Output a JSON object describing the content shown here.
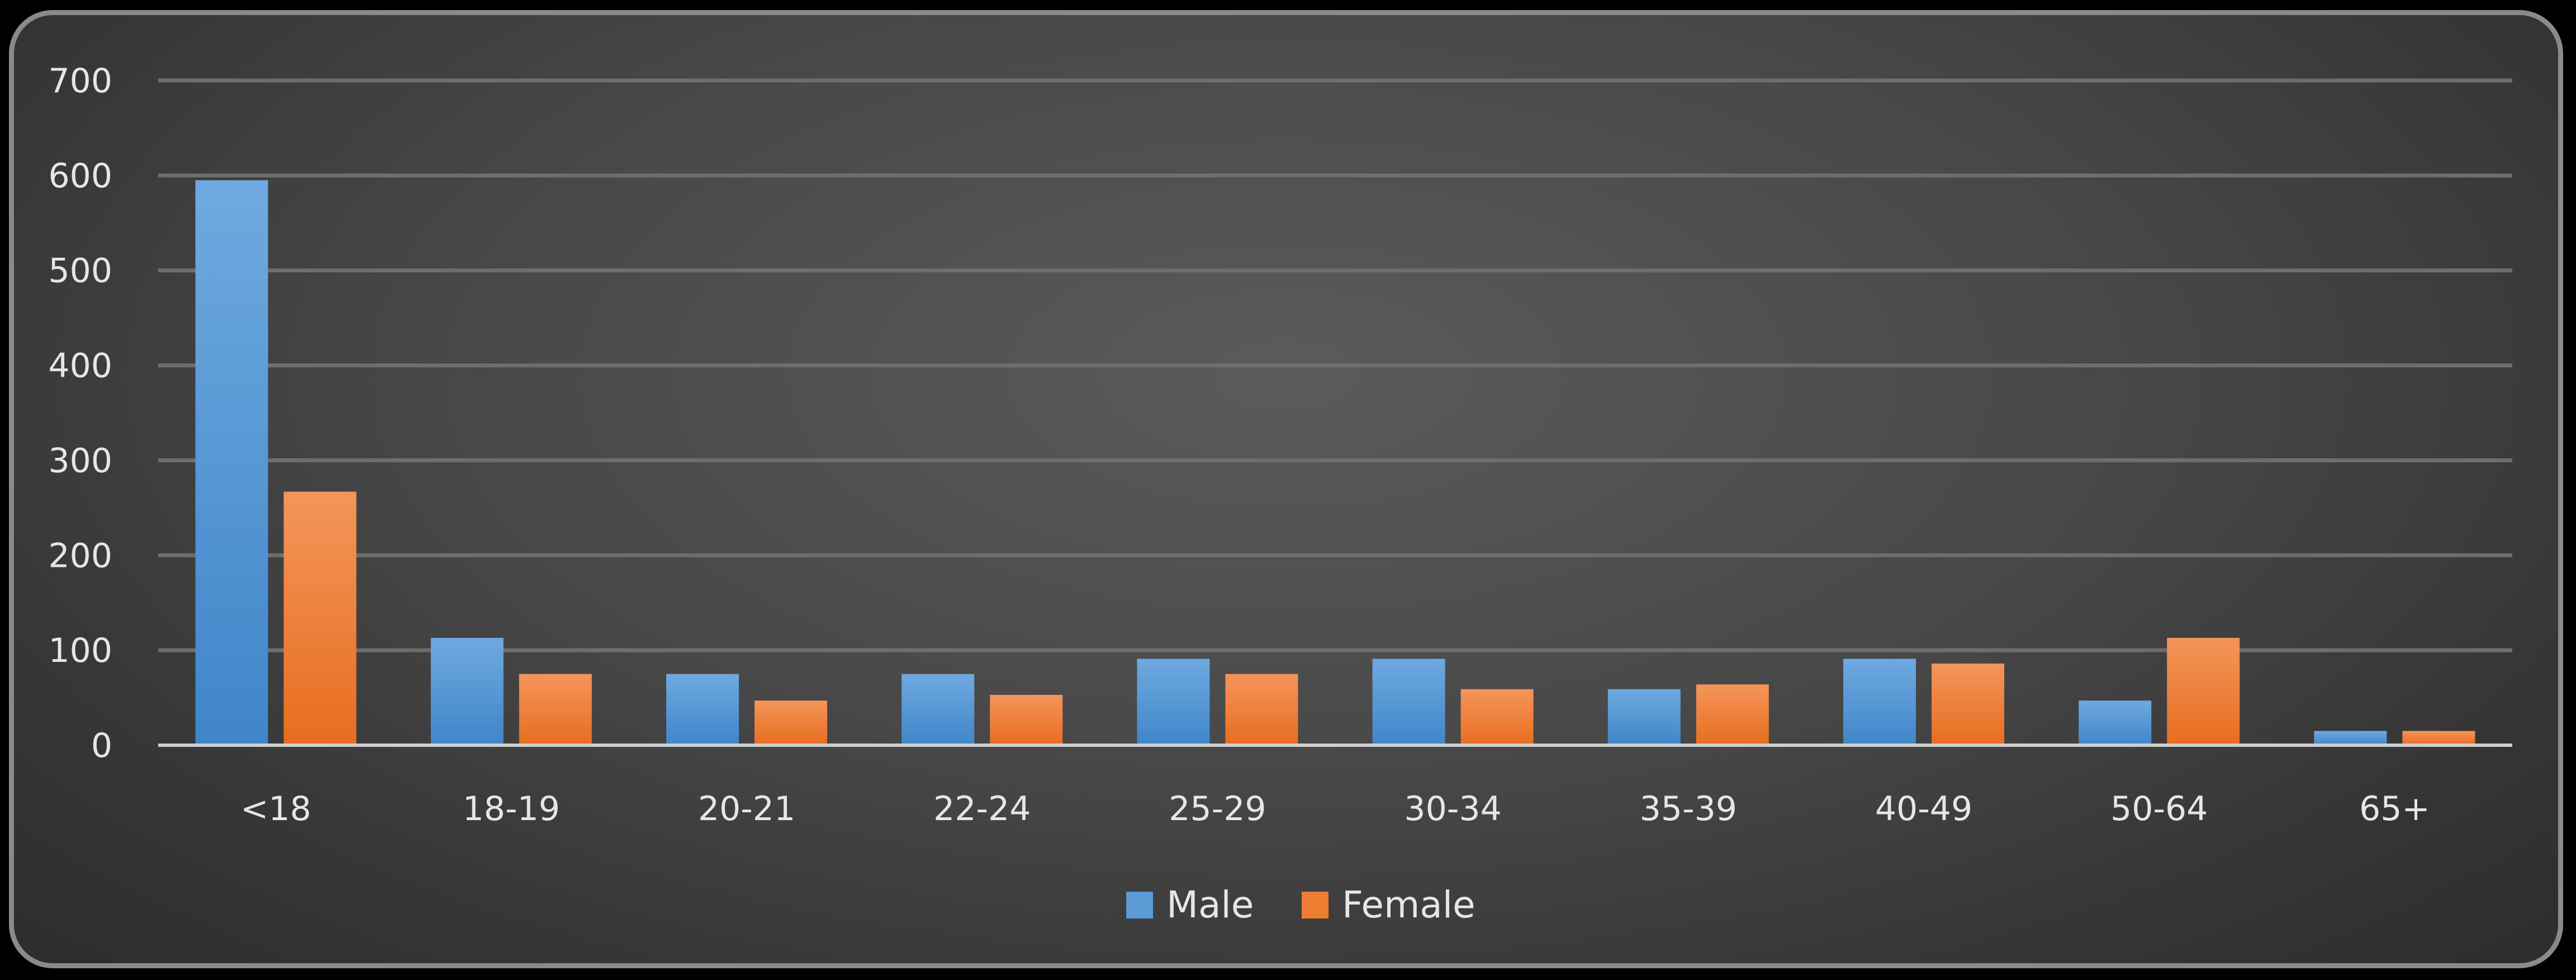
{
  "chart_data": {
    "type": "bar",
    "title": "",
    "xlabel": "",
    "ylabel": "",
    "categories": [
      "<18",
      "18-19",
      "20-21",
      "22-24",
      "25-29",
      "30-34",
      "35-39",
      "40-49",
      "50-64",
      "65+"
    ],
    "series": [
      {
        "name": "Male",
        "color": "#5b9bd5",
        "values": [
          595,
          113,
          75,
          75,
          91,
          91,
          59,
          91,
          47,
          15
        ]
      },
      {
        "name": "Female",
        "color": "#ed7d31",
        "values": [
          267,
          75,
          47,
          53,
          75,
          59,
          64,
          86,
          113,
          15
        ]
      }
    ],
    "ylim": [
      0,
      700
    ],
    "yticks": [
      0,
      100,
      200,
      300,
      400,
      500,
      600,
      700
    ],
    "grid": true,
    "legend": "bottom-center"
  }
}
